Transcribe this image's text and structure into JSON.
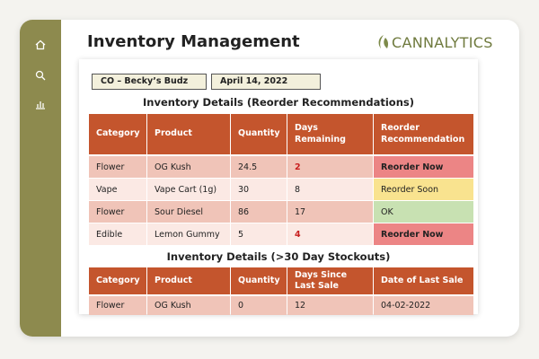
{
  "header": {
    "title": "Inventory Management",
    "brand": "CANNALYTICS"
  },
  "filters": {
    "store": "CO – Becky’s Budz",
    "date": "April 14, 2022"
  },
  "tables": [
    {
      "title": "Inventory Details (Reorder Recommendations)",
      "columns": [
        "Category",
        "Product",
        "Quantity",
        "Days Remaining",
        "Reorder Recommendation"
      ],
      "rows": [
        [
          "Flower",
          "OG Kush",
          "24.5",
          "2",
          "Reorder Now"
        ],
        [
          "Vape",
          "Vape Cart (1g)",
          "30",
          "8",
          "Reorder Soon"
        ],
        [
          "Flower",
          "Sour Diesel",
          "86",
          "17",
          "OK"
        ],
        [
          "Edible",
          "Lemon Gummy",
          "5",
          "4",
          "Reorder Now"
        ]
      ]
    },
    {
      "title": "Inventory Details (>30 Day Stockouts)",
      "columns": [
        "Category",
        "Product",
        "Quantity",
        "Days Since Last Sale",
        "Date of Last Sale"
      ],
      "rows": [
        [
          "Flower",
          "OG Kush",
          "0",
          "12",
          "04-02-2022"
        ]
      ]
    }
  ]
}
